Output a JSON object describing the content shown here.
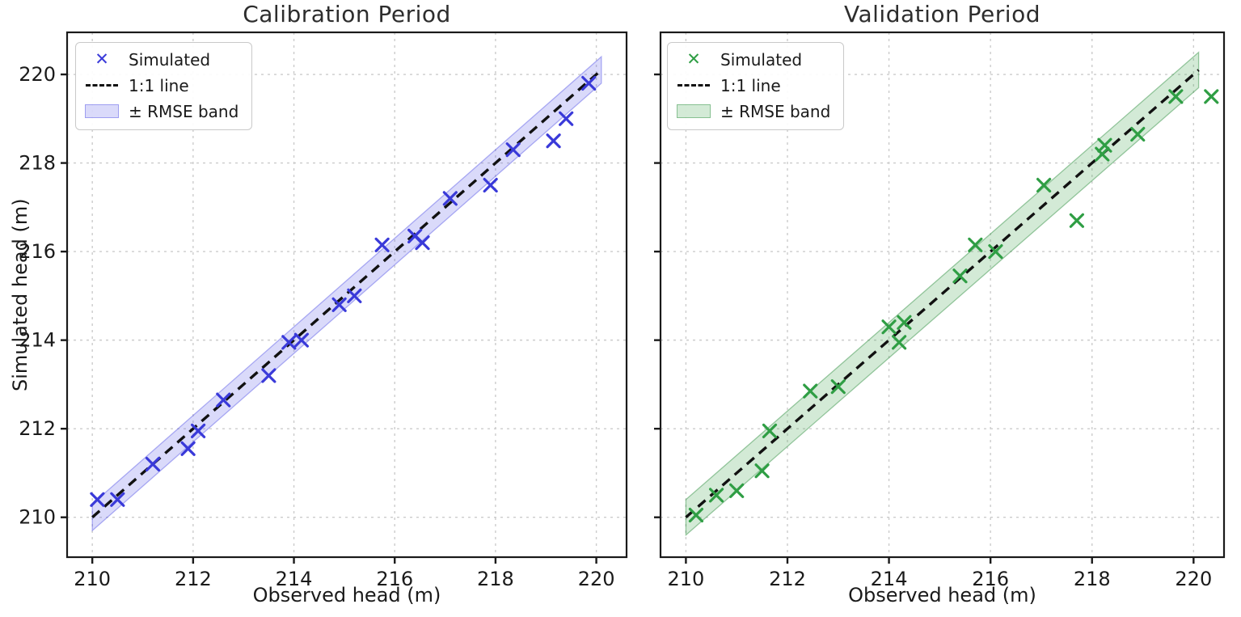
{
  "figure": {
    "background": "#ffffff"
  },
  "chart_data": [
    {
      "type": "scatter",
      "title": "Calibration Period",
      "xlabel": "Observed head (m)",
      "ylabel": "Simulated head (m)",
      "xlim": [
        209.5,
        220.6
      ],
      "ylim": [
        209.1,
        220.95
      ],
      "xticks": [
        210,
        212,
        214,
        216,
        218,
        220
      ],
      "yticks": [
        210,
        212,
        214,
        216,
        218,
        220
      ],
      "show_ytick_labels": true,
      "grid": true,
      "legend_position": "upper left",
      "marker_glyph": "✕",
      "legend": [
        {
          "label": "Simulated",
          "type": "marker"
        },
        {
          "label": "1:1 line",
          "type": "dash"
        },
        {
          "label": "± RMSE band",
          "type": "patch"
        }
      ],
      "identity_line": {
        "from": 210.0,
        "to": 220.1
      },
      "rmse": 0.3,
      "colors": {
        "marker": "#3a3ad9",
        "band_fill": "rgba(85,85,230,0.22)",
        "band_edge": "rgba(85,85,230,0.45)",
        "line": "#111111",
        "grid": "#cccccc",
        "spine": "#1a1a1a",
        "tick_text": "#1a1a1a"
      },
      "points": [
        [
          210.1,
          210.4
        ],
        [
          210.5,
          210.4
        ],
        [
          211.2,
          211.2
        ],
        [
          211.9,
          211.55
        ],
        [
          212.1,
          211.95
        ],
        [
          212.6,
          212.65
        ],
        [
          213.5,
          213.2
        ],
        [
          213.9,
          213.95
        ],
        [
          214.15,
          214.0
        ],
        [
          214.9,
          214.8
        ],
        [
          215.2,
          215.0
        ],
        [
          215.75,
          216.15
        ],
        [
          216.4,
          216.35
        ],
        [
          216.55,
          216.2
        ],
        [
          217.1,
          217.2
        ],
        [
          217.9,
          217.5
        ],
        [
          218.35,
          218.3
        ],
        [
          219.15,
          218.5
        ],
        [
          219.4,
          219.0
        ],
        [
          219.85,
          219.8
        ]
      ]
    },
    {
      "type": "scatter",
      "title": "Validation Period",
      "xlabel": "Observed head (m)",
      "ylabel": "",
      "xlim": [
        209.5,
        220.6
      ],
      "ylim": [
        209.1,
        220.95
      ],
      "xticks": [
        210,
        212,
        214,
        216,
        218,
        220
      ],
      "yticks": [
        210,
        212,
        214,
        216,
        218,
        220
      ],
      "show_ytick_labels": false,
      "grid": true,
      "legend_position": "upper left",
      "marker_glyph": "✕",
      "legend": [
        {
          "label": "Simulated",
          "type": "marker"
        },
        {
          "label": "1:1 line",
          "type": "dash"
        },
        {
          "label": "± RMSE band",
          "type": "patch"
        }
      ],
      "identity_line": {
        "from": 210.0,
        "to": 220.1
      },
      "rmse": 0.4,
      "colors": {
        "marker": "#2f9e44",
        "band_fill": "rgba(80,170,90,0.25)",
        "band_edge": "rgba(60,150,75,0.5)",
        "line": "#111111",
        "grid": "#cccccc",
        "spine": "#1a1a1a",
        "tick_text": "#1a1a1a"
      },
      "points": [
        [
          210.2,
          210.05
        ],
        [
          210.6,
          210.5
        ],
        [
          211.0,
          210.6
        ],
        [
          211.5,
          211.05
        ],
        [
          211.65,
          211.95
        ],
        [
          212.45,
          212.85
        ],
        [
          213.0,
          212.95
        ],
        [
          214.0,
          214.3
        ],
        [
          214.2,
          213.95
        ],
        [
          214.3,
          214.4
        ],
        [
          215.4,
          215.45
        ],
        [
          215.7,
          216.15
        ],
        [
          216.1,
          216.0
        ],
        [
          217.05,
          217.5
        ],
        [
          217.7,
          216.7
        ],
        [
          218.2,
          218.2
        ],
        [
          218.25,
          218.4
        ],
        [
          218.9,
          218.65
        ],
        [
          219.65,
          219.5
        ],
        [
          220.35,
          219.5
        ]
      ]
    }
  ]
}
